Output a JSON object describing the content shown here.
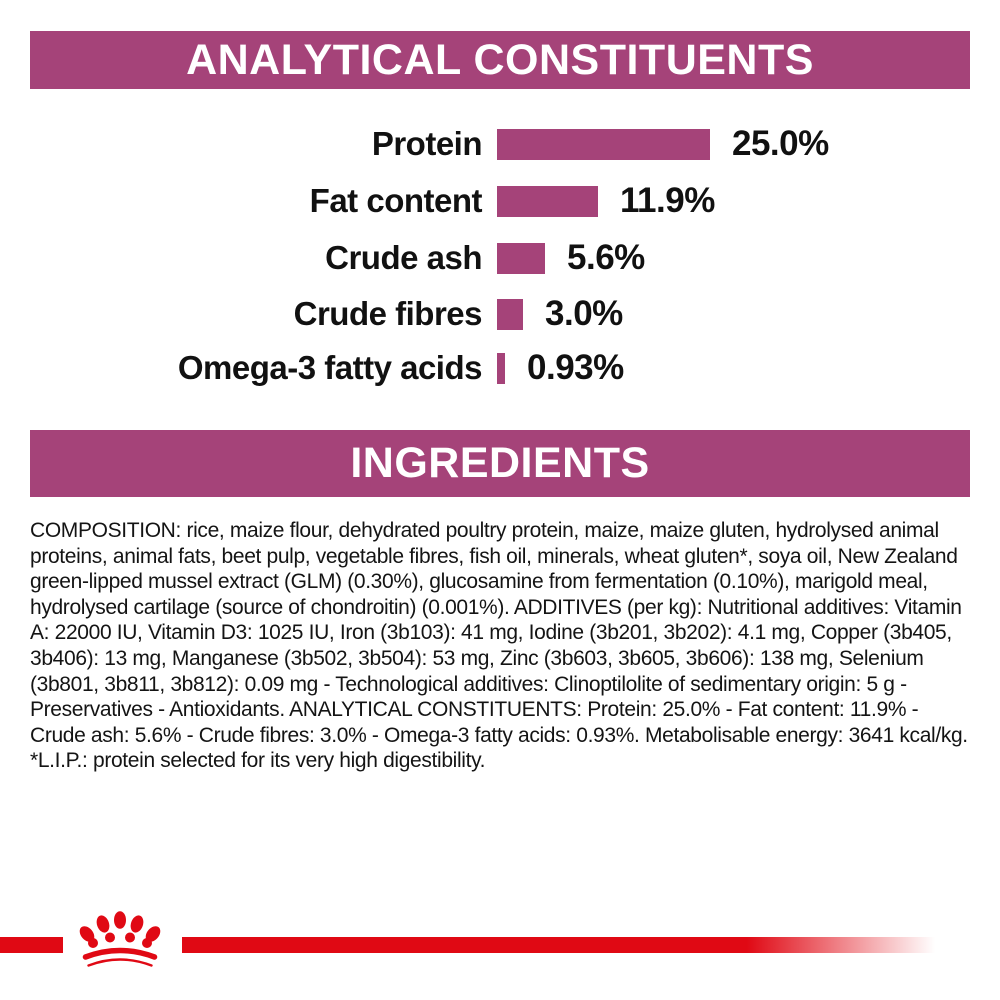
{
  "colors": {
    "magenta": "#a54379",
    "red": "#e00914",
    "header_text": "#ffffff",
    "body_text": "#141414"
  },
  "header_analytical": {
    "label": "ANALYTICAL CONSTITUENTS"
  },
  "header_ingredients": {
    "label": "INGREDIENTS"
  },
  "chart_data": {
    "type": "bar",
    "orientation": "horizontal",
    "title": "ANALYTICAL CONSTITUENTS",
    "categories": [
      "Protein",
      "Fat content",
      "Crude ash",
      "Crude fibres",
      "Omega-3 fatty acids"
    ],
    "values": [
      25.0,
      11.9,
      5.6,
      3.0,
      0.93
    ],
    "value_labels": [
      "25.0%",
      "11.9%",
      "5.6%",
      "3.0%",
      "0.93%"
    ],
    "unit": "%",
    "bar_color": "#a54379",
    "xlim": [
      0,
      30
    ],
    "grid": false,
    "axis_shown": false,
    "legend": "none"
  },
  "ingredients": {
    "composition_text": "COMPOSITION: rice, maize flour, dehydrated poultry protein, maize, maize gluten, hydrolysed animal proteins, animal fats, beet pulp, vegetable fibres, fish oil, minerals, wheat gluten*, soya oil, New Zealand green-lipped mussel extract (GLM) (0.30%), glucosamine from fermentation (0.10%), marigold meal, hydrolysed cartilage (source of chondroitin) (0.001%). ADDITIVES (per kg): Nutritional additives: Vitamin A: 22000 IU, Vitamin D3: 1025 IU, Iron (3b103): 41 mg, Iodine (3b201, 3b202): 4.1 mg, Copper (3b405, 3b406): 13 mg, Manganese (3b502, 3b504): 53 mg, Zinc (3b603, 3b605, 3b606): 138 mg, Selenium (3b801, 3b811, 3b812): 0.09 mg - Technological additives: Clinoptilolite of sedimentary origin: 5 g - Preservatives - Antioxidants. ANALYTICAL CONSTITUENTS: Protein: 25.0% - Fat content: 11.9% - Crude ash: 5.6% - Crude fibres: 3.0% - Omega-3 fatty acids: 0.93%. Metabolisable energy: 3641 kcal/kg. *L.I.P.: protein selected for its very high digestibility."
  },
  "footer": {
    "logo_icon": "crown-paw-print-logo",
    "band_color": "#e00914"
  }
}
